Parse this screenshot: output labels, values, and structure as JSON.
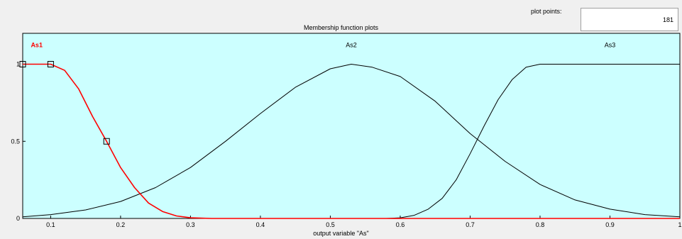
{
  "window": {
    "plot_points_label": "plot points:",
    "plot_points_value": "181",
    "plot_title": "Membership function plots",
    "x_axis_label": "output variable \"As\""
  },
  "colors": {
    "plot_background": "#ccffff",
    "selected_mf": "#ff0000",
    "mf_line": "#000000"
  },
  "chart_data": {
    "type": "line",
    "title": "Membership function plots",
    "xlabel": "output variable \"As\"",
    "ylabel": "",
    "xlim": [
      0.06,
      1.0
    ],
    "ylim": [
      0,
      1.2
    ],
    "x_ticks": [
      "0.1",
      "0.2",
      "0.3",
      "0.4",
      "0.5",
      "0.6",
      "0.7",
      "0.8",
      "0.9",
      "1"
    ],
    "x_tick_values": [
      0.1,
      0.2,
      0.3,
      0.4,
      0.5,
      0.6,
      0.7,
      0.8,
      0.9,
      1.0
    ],
    "y_ticks": [
      "0",
      "0.5",
      "1"
    ],
    "y_tick_values": [
      0,
      0.5,
      1
    ],
    "grid": false,
    "series": [
      {
        "name": "As1",
        "selected": true,
        "color": "#ff0000",
        "label_x": 0.08,
        "label_y": 1.11,
        "points": [
          [
            0.06,
            1.0
          ],
          [
            0.1,
            1.0
          ],
          [
            0.12,
            0.96
          ],
          [
            0.14,
            0.84
          ],
          [
            0.16,
            0.66
          ],
          [
            0.18,
            0.5
          ],
          [
            0.2,
            0.33
          ],
          [
            0.22,
            0.2
          ],
          [
            0.24,
            0.1
          ],
          [
            0.26,
            0.045
          ],
          [
            0.28,
            0.016
          ],
          [
            0.3,
            0.004
          ],
          [
            0.33,
            0.0
          ],
          [
            1.0,
            0.0
          ]
        ],
        "handles": [
          [
            0.06,
            1.0
          ],
          [
            0.1,
            1.0
          ],
          [
            0.18,
            0.5
          ]
        ]
      },
      {
        "name": "As2",
        "selected": false,
        "color": "#000000",
        "label_x": 0.53,
        "label_y": 1.11,
        "points": [
          [
            0.06,
            0.01
          ],
          [
            0.1,
            0.025
          ],
          [
            0.15,
            0.055
          ],
          [
            0.2,
            0.11
          ],
          [
            0.25,
            0.2
          ],
          [
            0.3,
            0.33
          ],
          [
            0.35,
            0.5
          ],
          [
            0.4,
            0.68
          ],
          [
            0.45,
            0.85
          ],
          [
            0.5,
            0.97
          ],
          [
            0.53,
            1.0
          ],
          [
            0.56,
            0.98
          ],
          [
            0.6,
            0.92
          ],
          [
            0.65,
            0.76
          ],
          [
            0.7,
            0.55
          ],
          [
            0.75,
            0.37
          ],
          [
            0.8,
            0.22
          ],
          [
            0.85,
            0.12
          ],
          [
            0.9,
            0.06
          ],
          [
            0.95,
            0.025
          ],
          [
            1.0,
            0.01
          ]
        ]
      },
      {
        "name": "As3",
        "selected": false,
        "color": "#000000",
        "label_x": 0.9,
        "label_y": 1.11,
        "points": [
          [
            0.06,
            0.0
          ],
          [
            0.58,
            0.0
          ],
          [
            0.6,
            0.004
          ],
          [
            0.62,
            0.02
          ],
          [
            0.64,
            0.06
          ],
          [
            0.66,
            0.13
          ],
          [
            0.68,
            0.25
          ],
          [
            0.7,
            0.42
          ],
          [
            0.72,
            0.6
          ],
          [
            0.74,
            0.77
          ],
          [
            0.76,
            0.9
          ],
          [
            0.78,
            0.98
          ],
          [
            0.8,
            1.0
          ],
          [
            1.0,
            1.0
          ]
        ]
      }
    ]
  }
}
